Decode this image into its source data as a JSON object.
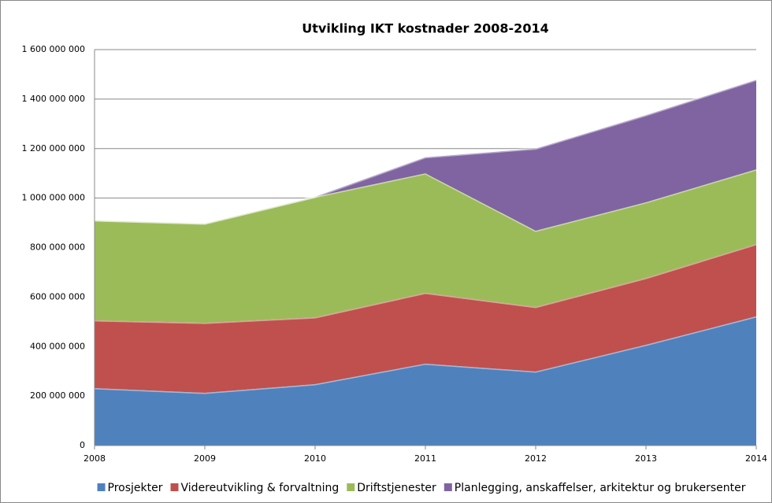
{
  "chart_data": {
    "type": "stacked_area",
    "title": "Utvikling IKT kostnader 2008-2014",
    "categories": [
      "2008",
      "2009",
      "2010",
      "2011",
      "2012",
      "2013",
      "2014"
    ],
    "series": [
      {
        "name": "Prosjekter",
        "color": "#4f81bd",
        "values": [
          232000000,
          213000000,
          248000000,
          331000000,
          299000000,
          407000000,
          522000000
        ]
      },
      {
        "name": "Videreutvikling & forvaltning",
        "color": "#c0504d",
        "values": [
          274000000,
          283000000,
          270000000,
          286000000,
          261000000,
          270000000,
          292000000
        ]
      },
      {
        "name": "Driftstjenester",
        "color": "#9bbb59",
        "values": [
          404000000,
          401000000,
          487000000,
          483000000,
          308000000,
          306000000,
          302000000
        ]
      },
      {
        "name": "Planlegging, anskaffelser, arkitektur og brukersenter",
        "color": "#8064a2",
        "values": [
          0,
          0,
          0,
          65000000,
          332000000,
          352000000,
          362000000
        ]
      }
    ],
    "ylim": [
      0,
      1600000000
    ],
    "yticks": [
      0,
      {
        "value": 200000000,
        "label": "200 000 000"
      },
      {
        "value": 400000000,
        "label": "400 000 000"
      },
      {
        "value": 600000000,
        "label": "600 000 000"
      },
      {
        "value": 800000000,
        "label": "800 000 000"
      },
      {
        "value": 1000000000,
        "label": "1 000 000 000"
      },
      {
        "value": 1200000000,
        "label": "1 200 000 000"
      },
      {
        "value": 1400000000,
        "label": "1 400 000 000"
      },
      {
        "value": 1600000000,
        "label": "1 600 000 000"
      }
    ],
    "grid": true,
    "legend": "bottom"
  }
}
